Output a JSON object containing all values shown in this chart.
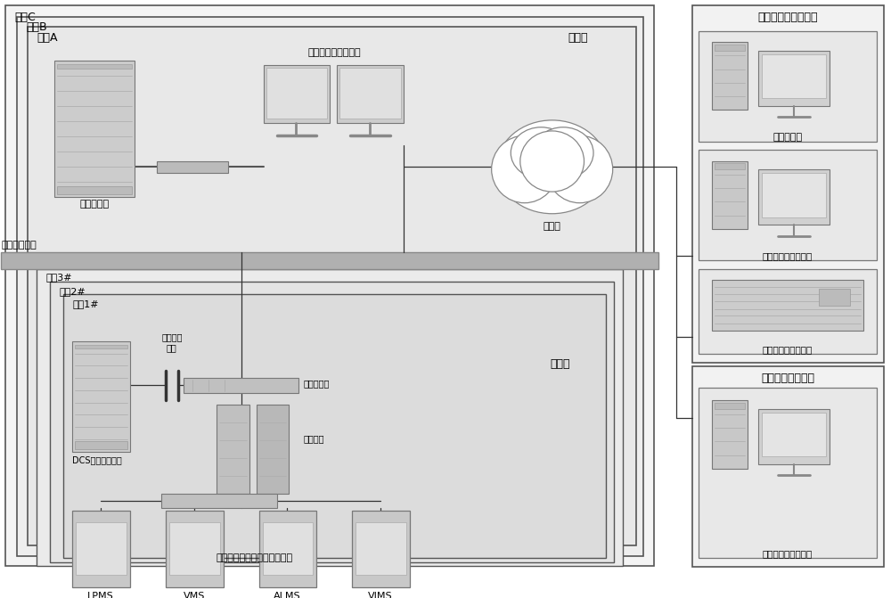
{
  "bg": "#ffffff",
  "labels": {
    "station_c": "电站C",
    "station_b": "电站B",
    "station_a": "电站A",
    "station_layer": "电站层",
    "unit3": "机组3#",
    "unit2": "机组2#",
    "unit1": "机组1#",
    "unit_layer": "机组层",
    "server": "独立服务器",
    "monitor_sta": "核电站监测及反馈站",
    "iso1": "第一隔离装置",
    "iso2": "第二隔离\n装置",
    "switch1": "第一交换机",
    "workstation": "主工作站",
    "dcs": "DCS分散控制系统",
    "internet": "互联网",
    "monitor_sys": "反应堆关键设备状态监测系统",
    "sub": [
      "LPMS",
      "VMS",
      "ALMS",
      "VIMS"
    ],
    "right_title": "反应堆故障诊断中心",
    "vis": "可视化单元",
    "intel": "智能故障诊断及决策",
    "data_mgmt": "数据管理与灾备单元",
    "equip_title": "设备设计研发机构",
    "diag": "诊断会诊与设计反馈"
  }
}
